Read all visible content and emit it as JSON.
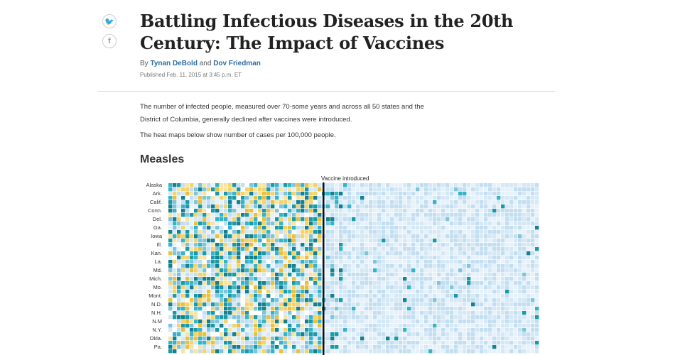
{
  "share": {
    "twitter_icon": "twitter-icon",
    "facebook_icon": "facebook-icon",
    "twitter_glyph": "🐦",
    "facebook_glyph": "f"
  },
  "article": {
    "title": "Battling Infectious Diseases in the 20th Century: The Impact of Vaccines",
    "byline_prefix": "By",
    "author1": "Tynan DeBold",
    "byline_and": "and",
    "author2": "Dov Friedman",
    "published": "Published Feb. 11, 2015 at 3:45 p.m. ET",
    "paragraph1": "The number of infected people, measured over 70-some years and across all 50 states and the District of Columbia, generally declined after vaccines were introduced.",
    "paragraph2": "The heat maps below show number of cases per 100,000 people."
  },
  "section": {
    "title": "Measles"
  },
  "chart_data": {
    "type": "heatmap",
    "title": "",
    "annotation": "Vaccine introduced",
    "row_labels": [
      "Alaska",
      "Ark.",
      "Calif.",
      "Conn.",
      "Del.",
      "Ga.",
      "Iowa",
      "Ill.",
      "Kan.",
      "La.",
      "Md.",
      "Mich.",
      "Mo.",
      "Mont.",
      "N.D.",
      "N.H.",
      "N.M",
      "N.Y.",
      "Okla.",
      "Pa."
    ],
    "colors": {
      "empty": "#ffffff",
      "low": [
        "#e6f1fa",
        "#d5e8f6",
        "#c3def1"
      ],
      "mid": [
        "#7fc5da",
        "#33b4c8",
        "#1a9aa8",
        "#15808f"
      ],
      "high": [
        "#f3d36a",
        "#eac03f",
        "#f7e4a0"
      ],
      "vaccine_line": "#111111"
    }
  }
}
